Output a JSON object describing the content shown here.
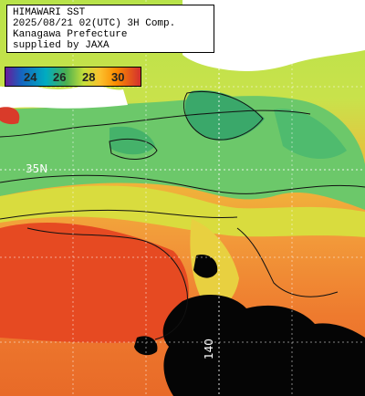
{
  "title": {
    "line1": "HIMAWARI SST",
    "line2": "2025/08/21 02(UTC) 3H Comp.",
    "line3": "Kanagawa Prefecture",
    "line4": "supplied by JAXA"
  },
  "colorbar": {
    "ticks": [
      "24",
      "26",
      "28",
      "30"
    ],
    "unit_hint": "sea surface temperature"
  },
  "grid_labels": {
    "lat": "35N",
    "lon": "140"
  },
  "colors": {
    "land": "#ffffff",
    "cloud": "#000000",
    "cool": "#3fa84a",
    "mid": "#c8e64a",
    "warm": "#f29a3a",
    "hot": "#e24a20"
  }
}
